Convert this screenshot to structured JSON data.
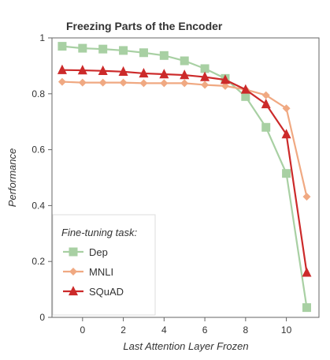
{
  "chart_data": {
    "type": "line",
    "title": "Freezing Parts of the Encoder",
    "xlabel": "Last Attention Layer Frozen",
    "ylabel": "Performance",
    "xlim": [
      -1.5,
      11.6
    ],
    "ylim": [
      0,
      1
    ],
    "xticks": [
      0,
      2,
      4,
      6,
      8,
      10
    ],
    "yticks": [
      0,
      0.2,
      0.4,
      0.6,
      0.8,
      1
    ],
    "grid": false,
    "legend": {
      "title": "Fine-tuning task:",
      "position": "bottom-left"
    },
    "x": [
      -1,
      0,
      1,
      2,
      3,
      4,
      5,
      6,
      7,
      8,
      9,
      10,
      11
    ],
    "series": [
      {
        "name": "Dep",
        "marker": "square",
        "color": "#a8d0a3",
        "values": [
          0.97,
          0.963,
          0.96,
          0.955,
          0.947,
          0.937,
          0.918,
          0.89,
          0.855,
          0.79,
          0.68,
          0.515,
          0.035
        ]
      },
      {
        "name": "MNLI",
        "marker": "diamond",
        "color": "#f0a982",
        "values": [
          0.843,
          0.84,
          0.84,
          0.84,
          0.838,
          0.838,
          0.838,
          0.832,
          0.828,
          0.815,
          0.795,
          0.748,
          0.432
        ]
      },
      {
        "name": "SQuAD",
        "marker": "triangle",
        "color": "#cc2a2a",
        "values": [
          0.885,
          0.884,
          0.882,
          0.879,
          0.873,
          0.87,
          0.867,
          0.86,
          0.85,
          0.815,
          0.763,
          0.655,
          0.16
        ]
      }
    ]
  }
}
